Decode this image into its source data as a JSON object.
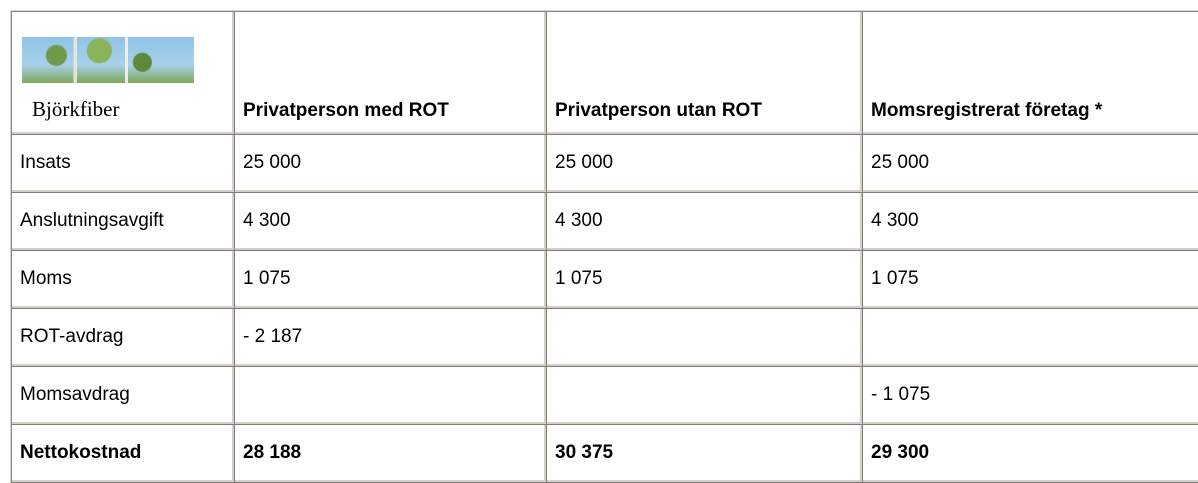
{
  "logo_text": "Björkfiber",
  "table": {
    "header": [
      "Privatperson med ROT",
      "Privatperson utan ROT",
      "Momsregistrerat företag *"
    ],
    "rows": [
      [
        "Insats",
        "25 000",
        "25 000",
        "25 000"
      ],
      [
        "Anslutningsavgift",
        "4 300",
        "4 300",
        "4 300"
      ],
      [
        "Moms",
        "1 075",
        "1 075",
        "1 075"
      ],
      [
        "ROT-avdrag",
        "- 2 187",
        null,
        null
      ],
      [
        "Momsavdrag",
        null,
        null,
        "- 1 075"
      ],
      [
        "Nettokostnad",
        "28 188",
        "30 375",
        "29 300"
      ]
    ]
  }
}
